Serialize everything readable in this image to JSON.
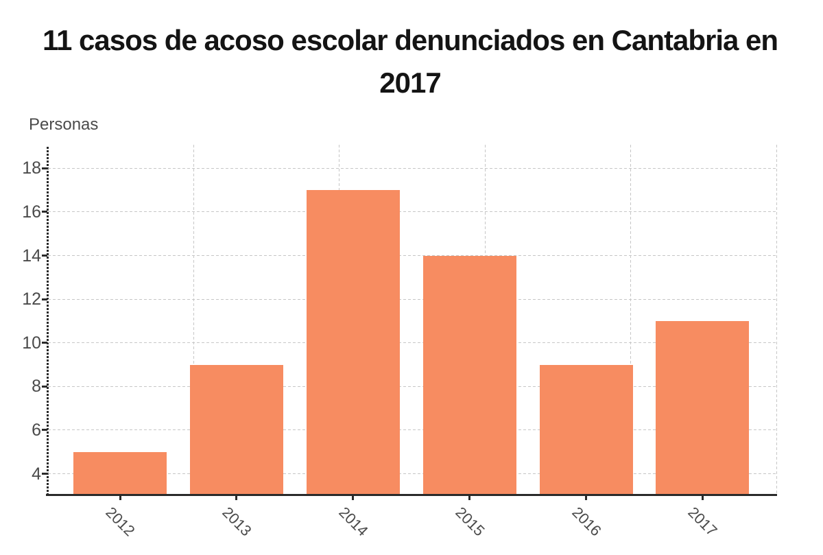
{
  "title": {
    "line1": "11 casos de acoso escolar denunciados en Cantabria en",
    "line2": "2017"
  },
  "chart_data": {
    "type": "bar",
    "title": "11 casos de acoso escolar denunciados en Cantabria en 2017",
    "ylabel": "Personas",
    "xlabel": "",
    "categories": [
      "2012",
      "2013",
      "2014",
      "2015",
      "2016",
      "2017"
    ],
    "values": [
      5,
      9,
      17,
      14,
      9,
      11
    ],
    "yticks": [
      4,
      6,
      8,
      10,
      12,
      14,
      16,
      18
    ],
    "ylim": [
      3,
      19
    ],
    "grid": "dashed horizontal lines at each y tick, 5 dashed vertical lines",
    "legend": "none",
    "colors": {
      "bar": "#F78C61",
      "axis": "#2a2a2a",
      "gridline": "#c6c6c6",
      "tick_label": "#4a4a4a",
      "title": "#141414",
      "background": "#ffffff"
    }
  }
}
